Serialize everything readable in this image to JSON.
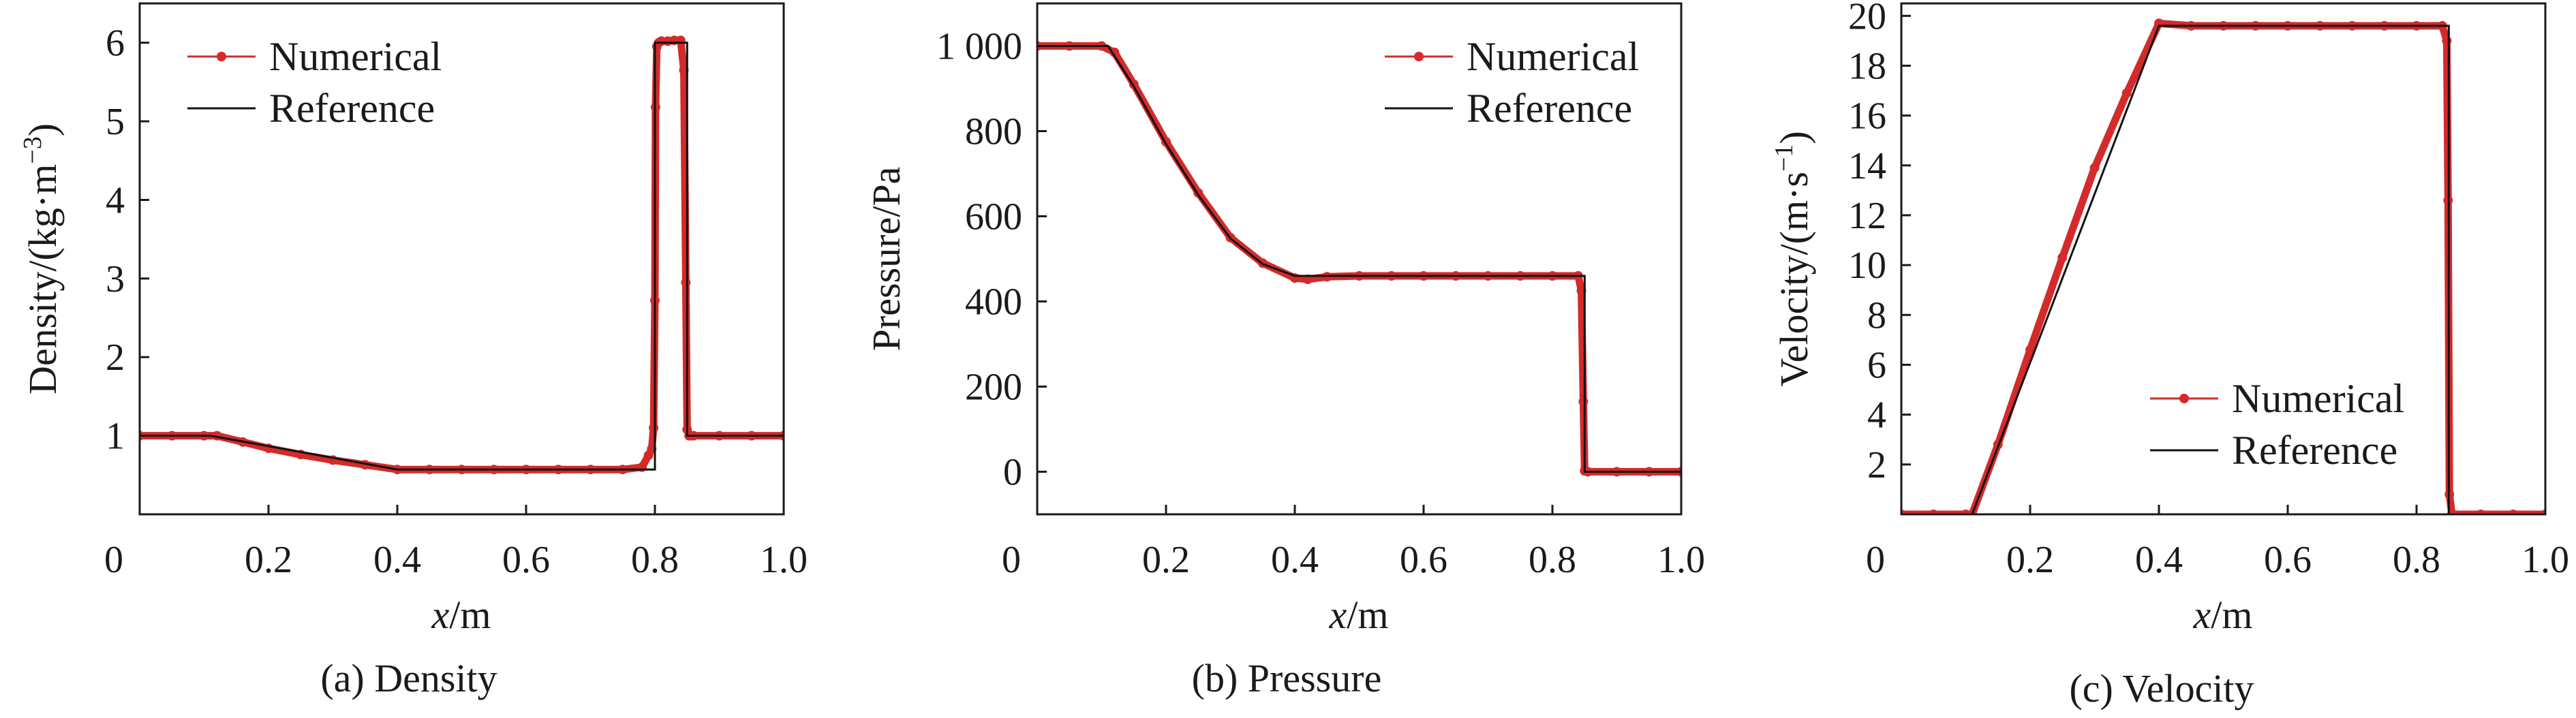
{
  "colors": {
    "numerical": "#d42a2a",
    "reference": "#111111",
    "axis": "#1a1a1a"
  },
  "chart_data": [
    {
      "type": "line",
      "caption": "(a) Density",
      "xlabel_italic": "x",
      "xlabel_unit": "/m",
      "ylabel": "Density/(kg·m",
      "ylabel_sup": "−3",
      "ylabel_tail": ")",
      "xlim": [
        0,
        1.0
      ],
      "ylim": [
        0,
        6.5
      ],
      "xticks": [
        0,
        0.2,
        0.4,
        0.6,
        0.8,
        1.0
      ],
      "xtick_labels": [
        "0",
        "0.2",
        "0.4",
        "0.6",
        "0.8",
        "1.0"
      ],
      "yticks": [
        1,
        2,
        3,
        4,
        5,
        6
      ],
      "ytick_labels": [
        "1",
        "2",
        "3",
        "4",
        "5",
        "6"
      ],
      "legend_position": "top-left",
      "series": [
        {
          "name": "Numerical",
          "style": "markers",
          "x": [
            0,
            0.05,
            0.1,
            0.12,
            0.16,
            0.2,
            0.25,
            0.3,
            0.35,
            0.4,
            0.45,
            0.5,
            0.55,
            0.6,
            0.65,
            0.7,
            0.75,
            0.78,
            0.79,
            0.795,
            0.798,
            0.8,
            0.801,
            0.803,
            0.806,
            0.81,
            0.82,
            0.83,
            0.84,
            0.845,
            0.848,
            0.85,
            0.853,
            0.856,
            0.86,
            0.9,
            0.95,
            1.0
          ],
          "y": [
            1.0,
            1.0,
            1.0,
            1.0,
            0.92,
            0.84,
            0.76,
            0.69,
            0.63,
            0.57,
            0.57,
            0.57,
            0.57,
            0.57,
            0.57,
            0.57,
            0.57,
            0.6,
            0.75,
            0.83,
            1.1,
            2.72,
            5.18,
            5.95,
            6.0,
            6.02,
            6.02,
            6.03,
            6.03,
            5.65,
            2.95,
            1.08,
            1.0,
            1.0,
            1.0,
            1.0,
            1.0,
            1.0
          ]
        },
        {
          "name": "Reference",
          "style": "line",
          "x": [
            0,
            0.11,
            0.4,
            0.8,
            0.8,
            0.85,
            0.85,
            1.0
          ],
          "y": [
            1.0,
            1.0,
            0.57,
            0.57,
            6.0,
            6.0,
            1.0,
            1.0
          ]
        }
      ]
    },
    {
      "type": "line",
      "caption": "(b) Pressure",
      "xlabel_italic": "x",
      "xlabel_unit": "/m",
      "ylabel": "Pressure/Pa",
      "ylabel_sup": "",
      "ylabel_tail": "",
      "xlim": [
        0,
        1.0
      ],
      "ylim": [
        -100,
        1100
      ],
      "xticks": [
        0,
        0.2,
        0.4,
        0.6,
        0.8,
        1.0
      ],
      "xtick_labels": [
        "0",
        "0.2",
        "0.4",
        "0.6",
        "0.8",
        "1.0"
      ],
      "yticks": [
        0,
        200,
        400,
        600,
        800,
        1000
      ],
      "ytick_labels": [
        "0",
        "200",
        "400",
        "600",
        "800",
        "1 000"
      ],
      "legend_position": "top-right",
      "series": [
        {
          "name": "Numerical",
          "style": "markers",
          "x": [
            0,
            0.05,
            0.1,
            0.12,
            0.15,
            0.2,
            0.25,
            0.3,
            0.35,
            0.4,
            0.42,
            0.45,
            0.5,
            0.55,
            0.6,
            0.65,
            0.7,
            0.75,
            0.8,
            0.84,
            0.845,
            0.848,
            0.85,
            0.855,
            0.9,
            0.95,
            1.0
          ],
          "y": [
            1000,
            1000,
            1000,
            985,
            910,
            775,
            655,
            550,
            490,
            455,
            452,
            458,
            460,
            460,
            460,
            460,
            460,
            460,
            460,
            460,
            425,
            165,
            2,
            0,
            0,
            0,
            0
          ]
        },
        {
          "name": "Reference",
          "style": "line",
          "x": [
            0,
            0.11,
            0.15,
            0.2,
            0.25,
            0.3,
            0.35,
            0.4,
            0.85,
            0.85,
            1.0
          ],
          "y": [
            1000,
            1000,
            905,
            770,
            650,
            548,
            488,
            460,
            460,
            0,
            0
          ]
        }
      ]
    },
    {
      "type": "line",
      "caption": "(c) Velocity",
      "xlabel_italic": "x",
      "xlabel_unit": "/m",
      "ylabel": "Velocity/(m·s",
      "ylabel_sup": "−1",
      "ylabel_tail": ")",
      "xlim": [
        0,
        1.0
      ],
      "ylim": [
        0,
        20.5
      ],
      "xticks": [
        0,
        0.2,
        0.4,
        0.6,
        0.8,
        1.0
      ],
      "xtick_labels": [
        "0",
        "0.2",
        "0.4",
        "0.6",
        "0.8",
        "1.0"
      ],
      "yticks": [
        2,
        4,
        6,
        8,
        10,
        12,
        14,
        16,
        18,
        20
      ],
      "ytick_labels": [
        "2",
        "4",
        "6",
        "8",
        "10",
        "12",
        "14",
        "16",
        "18",
        "20"
      ],
      "legend_position": "bottom-right",
      "series": [
        {
          "name": "Numerical",
          "style": "markers",
          "x": [
            0,
            0.05,
            0.1,
            0.11,
            0.15,
            0.2,
            0.25,
            0.3,
            0.35,
            0.4,
            0.45,
            0.5,
            0.55,
            0.6,
            0.65,
            0.7,
            0.75,
            0.8,
            0.84,
            0.847,
            0.849,
            0.851,
            0.855,
            0.9,
            0.95,
            1.0
          ],
          "y": [
            0,
            0,
            0,
            0,
            2.8,
            6.6,
            10.3,
            13.9,
            16.9,
            19.7,
            19.6,
            19.6,
            19.6,
            19.6,
            19.6,
            19.6,
            19.6,
            19.6,
            19.6,
            19.0,
            12.6,
            0.8,
            0,
            0,
            0,
            0
          ]
        },
        {
          "name": "Reference",
          "style": "line",
          "x": [
            0,
            0.11,
            0.4,
            0.85,
            0.85,
            1.0
          ],
          "y": [
            0,
            0,
            19.6,
            19.6,
            0,
            0
          ]
        }
      ]
    }
  ]
}
